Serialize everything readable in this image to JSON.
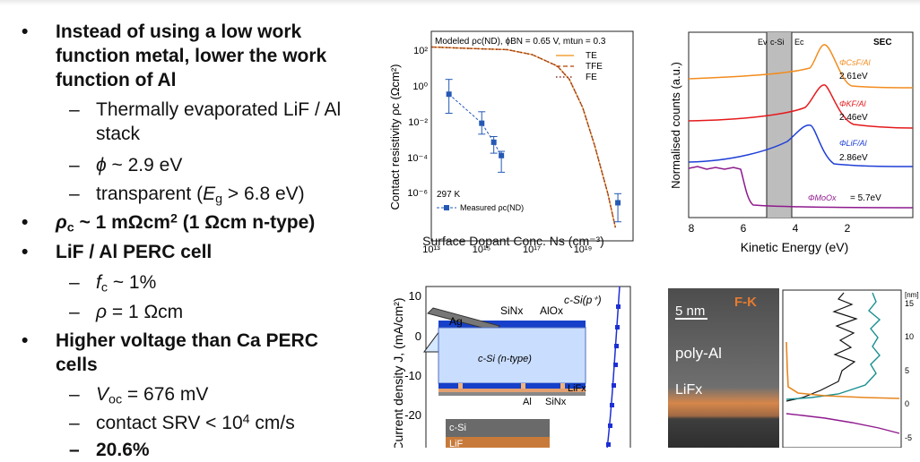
{
  "bullets": [
    {
      "level": 1,
      "marker": "•",
      "lines": [
        "Instead of using a low work",
        "function metal, lower the work",
        "function of Al"
      ]
    },
    {
      "level": 2,
      "marker": "–",
      "lines": [
        "Thermally evaporated LiF / Al",
        "stack"
      ]
    },
    {
      "level": 2,
      "marker": "–",
      "sym": "ϕ",
      "rest": " ~ 2.9 eV"
    },
    {
      "level": 2,
      "marker": "–",
      "pre": "transparent (",
      "sym": "E",
      "sub": "g",
      "rest": " > 6.8 eV)"
    },
    {
      "level": 1,
      "marker": "•",
      "sym": "ρ",
      "sub": "c",
      "rest": " ~ 1 mΩcm",
      "sup": "2",
      "tail": " (1 Ωcm n-type)"
    },
    {
      "level": 1,
      "marker": "•",
      "lines": [
        "LiF / Al PERC cell"
      ]
    },
    {
      "level": 2,
      "marker": "–",
      "sym": "f",
      "sub": "c",
      "rest": " ~ 1%"
    },
    {
      "level": 2,
      "marker": "–",
      "sym": "ρ",
      "rest": " = 1 Ωcm"
    },
    {
      "level": 1,
      "marker": "•",
      "lines": [
        "Higher voltage than Ca PERC",
        "cells"
      ]
    },
    {
      "level": 2,
      "marker": "–",
      "sym": "V",
      "sub": "oc",
      "rest": " = 676 mV"
    },
    {
      "level": 2,
      "marker": "–",
      "pre": "contact SRV < 10",
      "sup": "4",
      "rest": " cm/s"
    },
    {
      "level": 2,
      "marker": "–",
      "lines": [
        "20.6%"
      ]
    }
  ],
  "fig_resistivity": {
    "title": "Modeled ρc(ND), ϕBN = 0.65 V, mtun = 0.3",
    "ylabel": "Contact resistivity ρc (Ωcm²)",
    "xlabel": "Surface Dopant Conc. Ns (cm⁻³)",
    "temp_label": "297 K",
    "legend": [
      "TE",
      "TFE",
      "FE"
    ],
    "measured_label": "Measured ρc(ND)",
    "xticks": [
      "10¹³",
      "10¹⁵",
      "10¹⁷",
      "10¹⁹"
    ],
    "yticks": [
      "10²",
      "10⁰",
      "10⁻²",
      "10⁻⁴",
      "10⁻⁶"
    ]
  },
  "chart_data": {
    "type": "scatter",
    "title": "Modeled ρc(ND), ϕBN = 0.65 V, mtun = 0.3",
    "xlabel": "Surface Dopant Conc. Ns (cm⁻³)",
    "ylabel": "Contact resistivity ρc (Ωcm²)",
    "xscale": "log",
    "yscale": "log",
    "xlim": [
      10000000000000.0,
      1e+21
    ],
    "ylim": [
      1e-08,
      1000.0
    ],
    "series": [
      {
        "name": "TE",
        "style": "solid",
        "color": "#f0a23a",
        "x": [
          10000000000000.0,
          1000000000000000.0,
          1e+16,
          1e+17,
          1e+18,
          3e+18,
          1e+19,
          3e+19,
          1e+20,
          2e+20
        ],
        "y": [
          150,
          120,
          110,
          60,
          15,
          3,
          0.1,
          0.001,
          3e-06,
          5e-08
        ]
      },
      {
        "name": "TFE",
        "style": "dashed",
        "color": "#c0602a",
        "x": [
          10000000000000.0,
          1000000000000000.0,
          1e+16,
          1e+17,
          1e+18,
          3e+18,
          1e+19,
          3e+19,
          1e+20,
          2e+20
        ],
        "y": [
          150,
          120,
          110,
          60,
          15,
          3,
          0.1,
          0.001,
          3e-06,
          5e-08
        ]
      },
      {
        "name": "FE",
        "style": "dotted",
        "color": "#8a2f20",
        "x": [
          10000000000000.0,
          1000000000000000.0,
          1e+16,
          1e+17,
          1e+18,
          3e+18,
          1e+19,
          3e+19,
          1e+20,
          2e+20
        ],
        "y": [
          150,
          120,
          110,
          60,
          15,
          3,
          0.1,
          0.001,
          3e-06,
          5e-08
        ]
      },
      {
        "name": "Measured ρc(ND)",
        "style": "points",
        "color": "#2459b4",
        "x": [
          50000000000000.0,
          1000000000000000.0,
          3000000000000000.0,
          6000000000000000.0,
          2.5e+20
        ],
        "y": [
          0.5,
          0.015,
          0.0015,
          0.0003,
          1e-06
        ],
        "err_lo": [
          0.05,
          0.004,
          0.0004,
          4e-05,
          1e-07
        ],
        "err_hi": [
          3,
          0.06,
          0.003,
          0.0005,
          3e-06
        ]
      }
    ]
  },
  "fig_sec": {
    "ylabel": "Normalised counts (a.u.)",
    "xlabel": "Kinetic Energy (eV)",
    "xticks": [
      "8",
      "6",
      "4",
      "2"
    ],
    "tag": "SEC",
    "band_labels": [
      "Ev",
      "c-Si",
      "Ec"
    ],
    "curves": [
      {
        "phi": "ΦCsF/Al",
        "value": "2.61eV",
        "color": "#f28c1e"
      },
      {
        "phi": "ΦKF/Al",
        "value": "2.46eV",
        "color": "#e41a1c"
      },
      {
        "phi": "ΦLiF/Al",
        "value": "2.86eV",
        "color": "#1f3fd6"
      },
      {
        "phi": "ΦMoOx",
        "value": "= 5.7eV",
        "color": "#8e1a8e"
      }
    ]
  },
  "fig_jv": {
    "ylabel": "Current density J, (mA/cm²)",
    "yticks": [
      "10",
      "0",
      "-10",
      "-20"
    ],
    "labels": {
      "ag": "Ag",
      "sinx_top": "SiNx",
      "alox": "AlOx",
      "csi_p": "c-Si(p⁺)",
      "csi_n": "c-Si (n-type)",
      "lif": "LiFx",
      "al": "Al",
      "sinx_bot": "SiNx",
      "inset_csi": "c-Si",
      "inset_lif": "LiF"
    }
  },
  "fig_tem": {
    "scalebar": "5 nm",
    "tag": "F-K",
    "poly": "poly-Al",
    "lif": "LiFx",
    "unit": "[nm]",
    "ticks": [
      "15",
      "10",
      "5",
      "0",
      "-5"
    ]
  }
}
